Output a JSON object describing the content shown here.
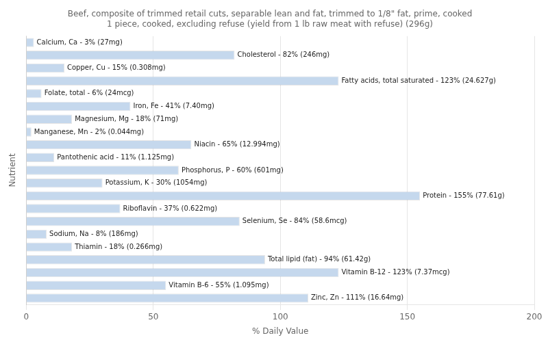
{
  "chart_data": {
    "type": "bar",
    "orientation": "horizontal",
    "title": "Beef, composite of trimmed retail cuts, separable lean and fat, trimmed to 1/8\" fat, prime, cooked\n1 piece, cooked, excluding refuse (yield from 1 lb raw meat with refuse) (296g)",
    "xlabel": "% Daily Value",
    "ylabel": "Nutrient",
    "categories": [
      "Calcium, Ca - 3% (27mg)",
      "Cholesterol - 82% (246mg)",
      "Copper, Cu - 15% (0.308mg)",
      "Fatty acids, total saturated - 123% (24.627g)",
      "Folate, total - 6% (24mcg)",
      "Iron, Fe - 41% (7.40mg)",
      "Magnesium, Mg - 18% (71mg)",
      "Manganese, Mn - 2% (0.044mg)",
      "Niacin - 65% (12.994mg)",
      "Pantothenic acid - 11% (1.125mg)",
      "Phosphorus, P - 60% (601mg)",
      "Potassium, K - 30% (1054mg)",
      "Protein - 155% (77.61g)",
      "Riboflavin - 37% (0.622mg)",
      "Selenium, Se - 84% (58.6mcg)",
      "Sodium, Na - 8% (186mg)",
      "Thiamin - 18% (0.266mg)",
      "Total lipid (fat) - 94% (61.42g)",
      "Vitamin B-12 - 123% (7.37mcg)",
      "Vitamin B-6 - 55% (1.095mg)",
      "Zinc, Zn - 111% (16.64mg)"
    ],
    "values": [
      3,
      82,
      15,
      123,
      6,
      41,
      18,
      2,
      65,
      11,
      60,
      30,
      155,
      37,
      84,
      8,
      18,
      94,
      123,
      55,
      111
    ],
    "color": "#c5d8ed",
    "xlim": [
      0,
      200
    ],
    "xticks": [
      0,
      50,
      100,
      150,
      200
    ],
    "grid": true,
    "tick_labels": "x"
  }
}
